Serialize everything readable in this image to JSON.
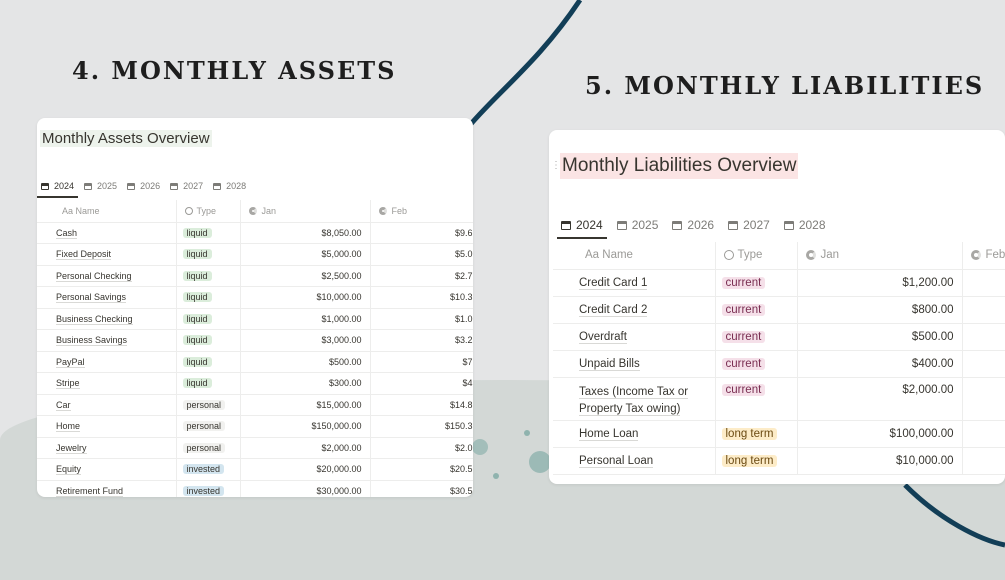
{
  "assets": {
    "heading": "4. MONTHLY ASSETS",
    "title": "Monthly Assets Overview",
    "tabs": [
      "2024",
      "2025",
      "2026",
      "2027",
      "2028"
    ],
    "columns": [
      "Aa Name",
      "Type",
      "Jan",
      "Feb"
    ],
    "rows": [
      {
        "name": "Cash",
        "type": "liquid",
        "jan": "$8,050.00",
        "feb": "$9.6"
      },
      {
        "name": "Fixed Deposit",
        "type": "liquid",
        "jan": "$5,000.00",
        "feb": "$5.0"
      },
      {
        "name": "Personal Checking",
        "type": "liquid",
        "jan": "$2,500.00",
        "feb": "$2.7"
      },
      {
        "name": "Personal Savings",
        "type": "liquid",
        "jan": "$10,000.00",
        "feb": "$10.3"
      },
      {
        "name": "Business Checking",
        "type": "liquid",
        "jan": "$1,000.00",
        "feb": "$1.0"
      },
      {
        "name": "Business Savings",
        "type": "liquid",
        "jan": "$3,000.00",
        "feb": "$3.2"
      },
      {
        "name": "PayPal",
        "type": "liquid",
        "jan": "$500.00",
        "feb": "$7"
      },
      {
        "name": "Stripe",
        "type": "liquid",
        "jan": "$300.00",
        "feb": "$4"
      },
      {
        "name": "Car",
        "type": "personal",
        "jan": "$15,000.00",
        "feb": "$14.8"
      },
      {
        "name": "Home",
        "type": "personal",
        "jan": "$150,000.00",
        "feb": "$150.3"
      },
      {
        "name": "Jewelry",
        "type": "personal",
        "jan": "$2,000.00",
        "feb": "$2.0"
      },
      {
        "name": "Equity",
        "type": "invested",
        "jan": "$20,000.00",
        "feb": "$20.5"
      },
      {
        "name": "Retirement Fund",
        "type": "invested",
        "jan": "$30,000.00",
        "feb": "$30.5"
      }
    ]
  },
  "liabilities": {
    "heading": "5. MONTHLY LIABILITIES",
    "title": "Monthly Liabilities Overview",
    "tabs": [
      "2024",
      "2025",
      "2026",
      "2027",
      "2028"
    ],
    "columns": [
      "Aa Name",
      "Type",
      "Jan",
      "Feb"
    ],
    "rows": [
      {
        "name": "Credit Card 1",
        "type": "current",
        "jan": "$1,200.00"
      },
      {
        "name": "Credit Card 2",
        "type": "current",
        "jan": "$800.00"
      },
      {
        "name": "Overdraft",
        "type": "current",
        "jan": "$500.00"
      },
      {
        "name": "Unpaid Bills",
        "type": "current",
        "jan": "$400.00"
      },
      {
        "name": "Taxes (Income Tax or Property Tax owing)",
        "type": "current",
        "jan": "$2,000.00"
      },
      {
        "name": "Home Loan",
        "type": "long term",
        "jan": "$100,000.00"
      },
      {
        "name": "Personal Loan",
        "type": "long term",
        "jan": "$10,000.00"
      }
    ]
  },
  "colors": {
    "liquid": "#dbeddb",
    "personal": "#f1f1ef",
    "invested": "#d3e5ef",
    "current": "#f5e0e9",
    "long term": "#fdecc8",
    "navy": "#123e57",
    "assets_title_bg": "#edf3ec",
    "liab_title_bg": "#fbe4e4"
  }
}
